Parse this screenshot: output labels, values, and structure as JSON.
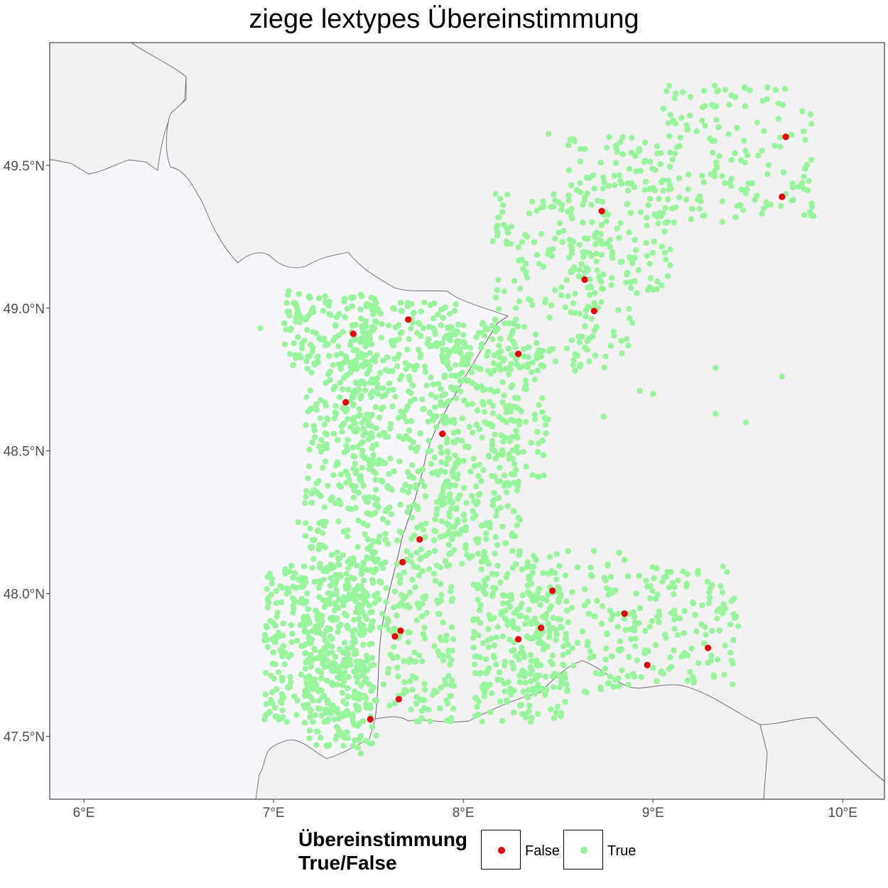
{
  "title": "ziege lextypes Übereinstimmung",
  "colors": {
    "panel_background": "#f7f7fc",
    "foreign_land": "#f2f2f2",
    "border": "#6b6b6b",
    "true_point": "#99f59b",
    "false_point": "#e8000b"
  },
  "axes": {
    "x_ticks": [
      {
        "value": 6,
        "label": "6°E"
      },
      {
        "value": 7,
        "label": "7°E"
      },
      {
        "value": 8,
        "label": "8°E"
      },
      {
        "value": 9,
        "label": "9°E"
      },
      {
        "value": 10,
        "label": "10°E"
      }
    ],
    "y_ticks": [
      {
        "value": 47.5,
        "label": "47.5°N"
      },
      {
        "value": 48.0,
        "label": "48.0°N"
      },
      {
        "value": 48.5,
        "label": "48.5°N"
      },
      {
        "value": 49.0,
        "label": "49.0°N"
      },
      {
        "value": 49.5,
        "label": "49.5°N"
      }
    ],
    "xlim": [
      5.82,
      10.22
    ],
    "ylim": [
      47.28,
      49.93
    ]
  },
  "legend": {
    "title": "Übereinstimmung\nTrue/False",
    "entries": [
      {
        "label": "False",
        "color": "#e8000b"
      },
      {
        "label": "True",
        "color": "#99f59b"
      }
    ]
  },
  "chart_data": {
    "type": "scatter",
    "x_unit": "longitude",
    "y_unit": "latitude",
    "false_points": [
      [
        9.7,
        49.6
      ],
      [
        9.68,
        49.39
      ],
      [
        8.73,
        49.34
      ],
      [
        8.64,
        49.1
      ],
      [
        8.69,
        48.99
      ],
      [
        8.29,
        48.84
      ],
      [
        7.71,
        48.96
      ],
      [
        7.42,
        48.91
      ],
      [
        7.38,
        48.67
      ],
      [
        7.89,
        48.56
      ],
      [
        7.77,
        48.19
      ],
      [
        7.68,
        48.11
      ],
      [
        8.47,
        48.01
      ],
      [
        8.85,
        47.93
      ],
      [
        8.41,
        47.88
      ],
      [
        8.29,
        47.84
      ],
      [
        7.67,
        47.87
      ],
      [
        7.64,
        47.85
      ],
      [
        9.29,
        47.81
      ],
      [
        8.97,
        47.75
      ],
      [
        7.66,
        47.63
      ],
      [
        7.51,
        47.56
      ]
    ],
    "true_regions": [
      {
        "count": 430,
        "lon": [
          7.16,
          7.55
        ],
        "lat": [
          47.46,
          48.8
        ]
      },
      {
        "count": 330,
        "lon": [
          6.95,
          7.48
        ],
        "lat": [
          47.55,
          48.1
        ]
      },
      {
        "count": 140,
        "lon": [
          7.05,
          7.55
        ],
        "lat": [
          48.8,
          49.05
        ]
      },
      {
        "count": 300,
        "lon": [
          7.42,
          7.98
        ],
        "lat": [
          48.4,
          49.02
        ]
      },
      {
        "count": 270,
        "lon": [
          7.48,
          7.95
        ],
        "lat": [
          47.55,
          48.4
        ]
      },
      {
        "count": 300,
        "lon": [
          7.88,
          8.3
        ],
        "lat": [
          48.1,
          48.95
        ]
      },
      {
        "count": 240,
        "lon": [
          8.05,
          8.55
        ],
        "lat": [
          47.55,
          48.1
        ]
      },
      {
        "count": 150,
        "lon": [
          8.25,
          8.85
        ],
        "lat": [
          47.65,
          48.15
        ]
      },
      {
        "count": 140,
        "lon": [
          8.85,
          9.45
        ],
        "lat": [
          47.68,
          48.1
        ]
      },
      {
        "count": 170,
        "lon": [
          8.15,
          8.75
        ],
        "lat": [
          48.78,
          49.4
        ]
      },
      {
        "count": 170,
        "lon": [
          8.55,
          9.1
        ],
        "lat": [
          49.05,
          49.6
        ]
      },
      {
        "count": 160,
        "lon": [
          9.05,
          9.85
        ],
        "lat": [
          49.3,
          49.78
        ]
      },
      {
        "count": 70,
        "lon": [
          8.15,
          8.45
        ],
        "lat": [
          48.38,
          48.86
        ]
      },
      {
        "count": 25,
        "lon": [
          8.55,
          8.9
        ],
        "lat": [
          48.78,
          49.0
        ]
      }
    ],
    "true_outliers": [
      [
        8.93,
        48.71
      ],
      [
        9.0,
        48.7
      ],
      [
        9.33,
        48.79
      ],
      [
        9.33,
        48.63
      ],
      [
        9.49,
        48.6
      ],
      [
        9.68,
        48.76
      ],
      [
        8.74,
        48.62
      ],
      [
        9.09,
        49.15
      ],
      [
        8.45,
        49.61
      ],
      [
        7.13,
        48.25
      ],
      [
        7.08,
        49.06
      ],
      [
        6.93,
        48.93
      ],
      [
        7.46,
        47.44
      ]
    ]
  }
}
